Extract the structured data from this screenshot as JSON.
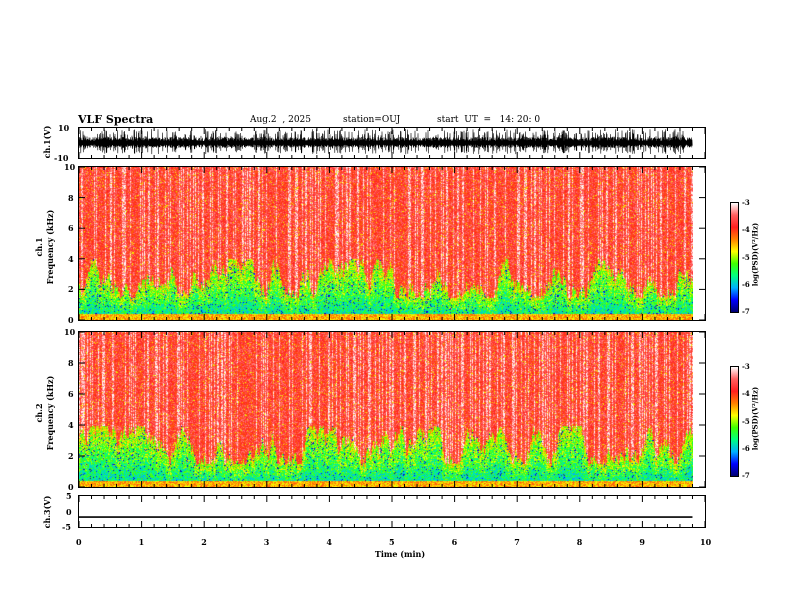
{
  "header": {
    "title": "VLF Spectra",
    "date": "Aug.2  , 2025",
    "station": "station=OUJ",
    "start": "start  UT  =   14: 20: 0"
  },
  "chart_data": [
    {
      "type": "line",
      "name": "ch1-waveform",
      "ylabel": "ch.1(V)",
      "ylim": [
        -10,
        10
      ],
      "yticks": [
        "10",
        "-10"
      ],
      "xlim": [
        0,
        10
      ]
    },
    {
      "type": "heatmap",
      "name": "ch1-spectrogram",
      "ylabel": "ch.1\nFrequency  (kHz)",
      "ylabel_lines": [
        "ch.1",
        "Frequency  (kHz)"
      ],
      "ylim": [
        0,
        10
      ],
      "yticks": [
        "0",
        "2",
        "4",
        "6",
        "8",
        "10"
      ],
      "xlim": [
        0,
        10
      ],
      "data_end_min": 9.8,
      "colorbar": {
        "label": "log(PSD)(V²/Hz)",
        "range": [
          -7,
          -3
        ],
        "ticks": [
          "-3",
          "-4",
          "-5",
          "-6",
          "-7"
        ]
      }
    },
    {
      "type": "heatmap",
      "name": "ch2-spectrogram",
      "ylabel": "ch.2\nFrequency  (kHz)",
      "ylabel_lines": [
        "ch.2",
        "Frequency  (kHz)"
      ],
      "ylim": [
        0,
        10
      ],
      "yticks": [
        "0",
        "2",
        "4",
        "6",
        "8",
        "10"
      ],
      "xlim": [
        0,
        10
      ],
      "data_end_min": 9.8,
      "colorbar": {
        "label": "log(PSD)(V²/Hz)",
        "range": [
          -7,
          -3
        ],
        "ticks": [
          "-3",
          "-4",
          "-5",
          "-6",
          "-7"
        ]
      }
    },
    {
      "type": "line",
      "name": "ch3-waveform",
      "ylabel": "ch.3(V)",
      "ylim": [
        -5,
        5
      ],
      "yticks": [
        "5",
        "0",
        "-5"
      ],
      "flat_value": -1.8,
      "xlim": [
        0,
        10
      ]
    }
  ],
  "xaxis": {
    "label": "Time  (min)",
    "ticks": [
      "0",
      "1",
      "2",
      "3",
      "4",
      "5",
      "6",
      "7",
      "8",
      "9",
      "10"
    ]
  },
  "colors": {
    "scale": [
      "#000070",
      "#0000ff",
      "#00b0ff",
      "#00ff80",
      "#40ff00",
      "#ffff00",
      "#ff8000",
      "#ff2020",
      "#ff6060",
      "#ffffff"
    ]
  }
}
